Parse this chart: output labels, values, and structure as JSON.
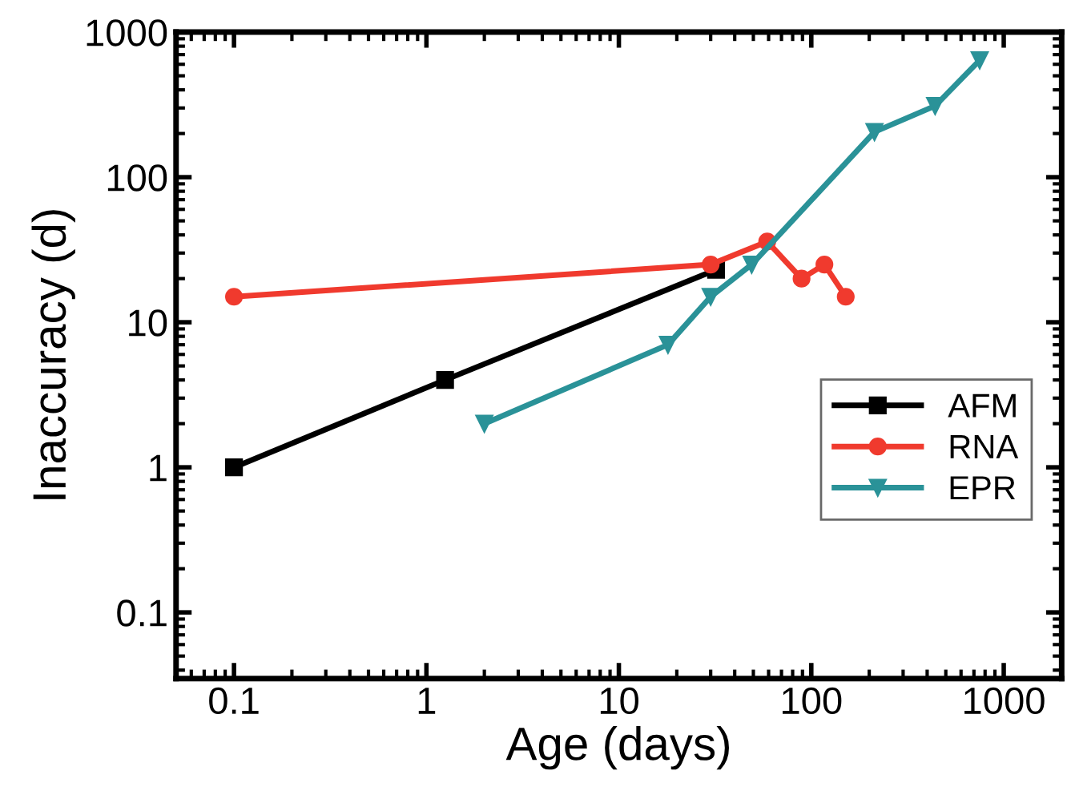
{
  "chart_data": {
    "type": "line",
    "xlabel": "Age (days)",
    "ylabel": "Inaccuracy (d)",
    "log": "xy",
    "xlim": [
      0.05,
      2000
    ],
    "ylim": [
      0.035,
      1000
    ],
    "xticks": [
      {
        "value": 0.1,
        "label": "0.1"
      },
      1,
      10,
      100,
      1000
    ],
    "yticks": [
      {
        "value": 0.1,
        "label": "0.1"
      },
      1,
      10,
      100,
      1000
    ],
    "grid": false,
    "legend": "bottom right",
    "line_style": "solid",
    "series": [
      {
        "name": "AFM",
        "color": "#000000",
        "marker": "square",
        "x": [
          0.1,
          1.25,
          32
        ],
        "values": [
          1,
          4,
          23
        ]
      },
      {
        "name": "RNA",
        "color": "#f03a2e",
        "marker": "circle",
        "x": [
          0.1,
          30,
          59,
          89,
          117,
          151
        ],
        "values": [
          15,
          25,
          36,
          20,
          25,
          15
        ]
      },
      {
        "name": "EPR",
        "color": "#2a9298",
        "marker": "triangle",
        "x": [
          2,
          18,
          30,
          49,
          213,
          440,
          750
        ],
        "values": [
          2,
          7,
          15,
          25,
          205,
          310,
          640
        ]
      }
    ]
  }
}
